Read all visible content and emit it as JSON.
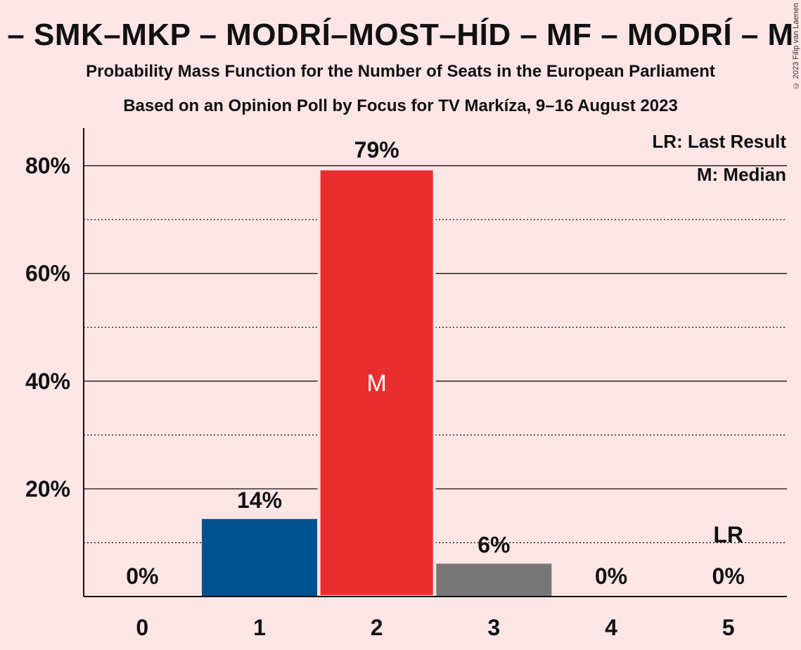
{
  "chart_data": {
    "type": "bar",
    "title": "– SMK–MKP – MODRÍ–MOST–HÍD – MF – MODRÍ – M",
    "subtitle": "Probability Mass Function for the Number of Seats in the European Parliament",
    "subtitle2": "Based on an Opinion Poll by Focus for TV Markíza, 9–16 August 2023",
    "copyright": "© 2023 Filip van Laenen",
    "categories": [
      "0",
      "1",
      "2",
      "3",
      "4",
      "5"
    ],
    "values": [
      0,
      14.4,
      79.4,
      6.1,
      0,
      0
    ],
    "value_labels": [
      "0%",
      "14%",
      "79%",
      "6%",
      "0%",
      "0%"
    ],
    "bar_colors": [
      "#005290",
      "#005290",
      "#E82E2E",
      "#777777",
      "#777777",
      "#777777"
    ],
    "ylim": [
      0,
      87
    ],
    "yticks": [
      20,
      40,
      60,
      80
    ],
    "ytick_labels": [
      "20%",
      "40%",
      "60%",
      "80%"
    ],
    "minor_gridlines": [
      10,
      30,
      50,
      70
    ],
    "median_index": 2,
    "median_marker": "M",
    "last_result_index": 5,
    "last_result_marker": "LR",
    "legend": {
      "position": "top-right",
      "entries": [
        "LR: Last Result",
        "M: Median"
      ]
    },
    "xlabel": "",
    "ylabel": ""
  }
}
